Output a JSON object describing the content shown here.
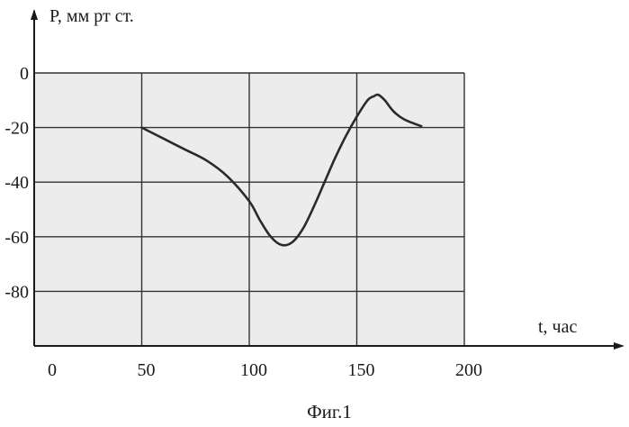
{
  "chart_data": {
    "type": "line",
    "ylabel": "P, мм рт ст.",
    "xlabel": "t, час",
    "caption": "Фиг.1",
    "xlim": [
      0,
      200
    ],
    "ylim": [
      -100,
      0
    ],
    "x_ticks": [
      0,
      50,
      100,
      150,
      200
    ],
    "x_tick_labels": [
      "0",
      "50",
      "100",
      "150",
      "200"
    ],
    "y_ticks": [
      0,
      -20,
      -40,
      -60,
      -80
    ],
    "y_tick_labels": [
      "0",
      "-20",
      "-40",
      "-60",
      "-80"
    ],
    "grid": true,
    "series": [
      {
        "x": [
          50,
          60,
          70,
          80,
          90,
          100,
          105,
          110,
          115,
          120,
          125,
          130,
          135,
          140,
          145,
          150,
          155,
          158,
          160,
          163,
          167,
          172,
          180
        ],
        "y": [
          -20,
          -24,
          -28,
          -32,
          -38,
          -47,
          -54,
          -60,
          -63,
          -62,
          -57,
          -49,
          -40,
          -31,
          -23,
          -16,
          -10,
          -8.5,
          -8,
          -10,
          -14,
          -17,
          -19.5
        ]
      }
    ],
    "line_color": "#2a2a2a",
    "grid_color": "#333333",
    "plot_shading": "#dcdcdc"
  }
}
